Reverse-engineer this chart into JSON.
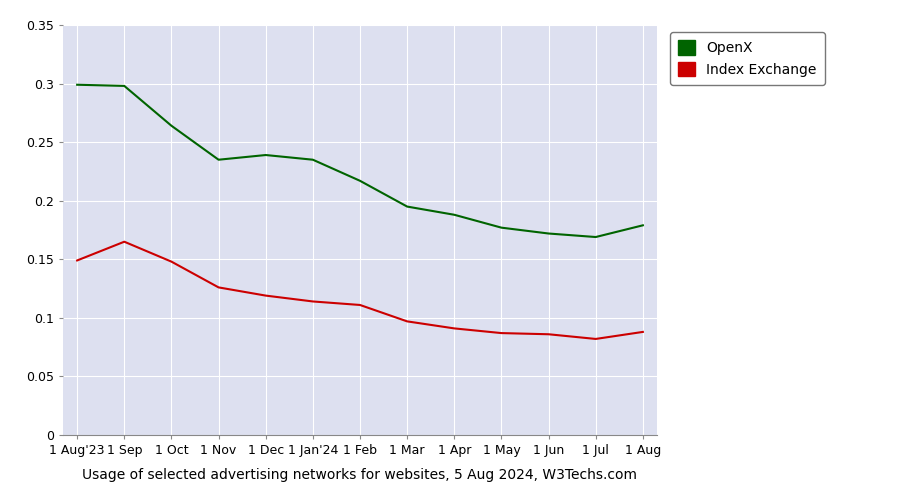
{
  "title": "Usage of selected advertising networks for websites, 5 Aug 2024, W3Techs.com",
  "x_labels": [
    "1 Aug'23",
    "1 Sep",
    "1 Oct",
    "1 Nov",
    "1 Dec",
    "1 Jan'24",
    "1 Feb",
    "1 Mar",
    "1 Apr",
    "1 May",
    "1 Jun",
    "1 Jul",
    "1 Aug"
  ],
  "openx_values": [
    0.299,
    0.298,
    0.264,
    0.235,
    0.239,
    0.235,
    0.217,
    0.195,
    0.188,
    0.177,
    0.172,
    0.169,
    0.179
  ],
  "index_exchange_values": [
    0.149,
    0.165,
    0.148,
    0.126,
    0.119,
    0.114,
    0.111,
    0.097,
    0.091,
    0.087,
    0.086,
    0.082,
    0.088
  ],
  "openx_color": "#006400",
  "index_exchange_color": "#cc0000",
  "plot_bg_color": "#dde0f0",
  "fig_bg_color": "#ffffff",
  "ylim": [
    0,
    0.35
  ],
  "yticks": [
    0,
    0.05,
    0.1,
    0.15,
    0.2,
    0.25,
    0.3,
    0.35
  ],
  "ytick_labels": [
    "0",
    "0.05",
    "0.1",
    "0.15",
    "0.2",
    "0.25",
    "0.3",
    "0.35"
  ],
  "grid_color": "#ffffff",
  "legend_openx": "OpenX",
  "legend_index": "Index Exchange",
  "line_width": 1.5,
  "title_fontsize": 10,
  "tick_fontsize": 9,
  "legend_fontsize": 10
}
